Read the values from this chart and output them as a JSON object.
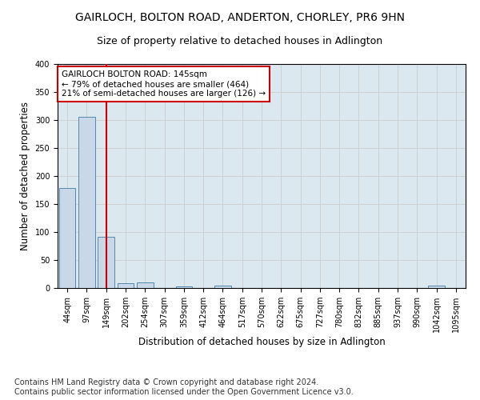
{
  "title1": "GAIRLOCH, BOLTON ROAD, ANDERTON, CHORLEY, PR6 9HN",
  "title2": "Size of property relative to detached houses in Adlington",
  "xlabel": "Distribution of detached houses by size in Adlington",
  "ylabel": "Number of detached properties",
  "footer1": "Contains HM Land Registry data © Crown copyright and database right 2024.",
  "footer2": "Contains public sector information licensed under the Open Government Licence v3.0.",
  "bar_labels": [
    "44sqm",
    "97sqm",
    "149sqm",
    "202sqm",
    "254sqm",
    "307sqm",
    "359sqm",
    "412sqm",
    "464sqm",
    "517sqm",
    "570sqm",
    "622sqm",
    "675sqm",
    "727sqm",
    "780sqm",
    "832sqm",
    "885sqm",
    "937sqm",
    "990sqm",
    "1042sqm",
    "1095sqm"
  ],
  "bar_values": [
    178,
    305,
    92,
    9,
    10,
    0,
    3,
    0,
    5,
    0,
    0,
    0,
    0,
    0,
    0,
    0,
    0,
    0,
    0,
    4,
    0
  ],
  "bar_color": "#c8d8e8",
  "bar_edgecolor": "#5588aa",
  "vline_x": 2,
  "vline_color": "#cc0000",
  "annotation_text": "GAIRLOCH BOLTON ROAD: 145sqm\n← 79% of detached houses are smaller (464)\n21% of semi-detached houses are larger (126) →",
  "annotation_box_color": "#ffffff",
  "annotation_box_edgecolor": "#cc0000",
  "ylim": [
    0,
    400
  ],
  "yticks": [
    0,
    50,
    100,
    150,
    200,
    250,
    300,
    350,
    400
  ],
  "grid_color": "#cccccc",
  "bg_color": "#dce8f0",
  "title1_fontsize": 10,
  "title2_fontsize": 9,
  "annot_fontsize": 7.5,
  "xlabel_fontsize": 8.5,
  "ylabel_fontsize": 8.5,
  "tick_fontsize": 7,
  "footer_fontsize": 7
}
